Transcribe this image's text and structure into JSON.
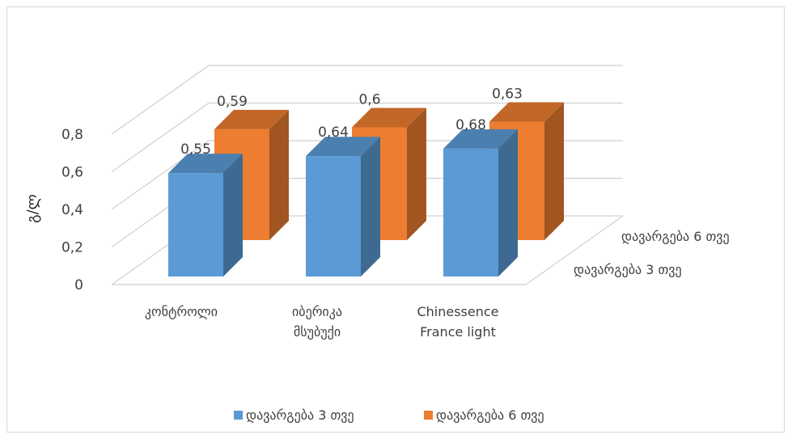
{
  "chart_data": {
    "type": "bar",
    "title": "",
    "xlabel": "",
    "ylabel": "გ/ლ",
    "ylim": [
      0,
      0.8
    ],
    "yticks": [
      "0",
      "0,2",
      "0,4",
      "0,6",
      "0,8"
    ],
    "yticks_values": [
      0,
      0.2,
      0.4,
      0.6,
      0.8
    ],
    "grid": true,
    "legend_position": "bottom",
    "categories": [
      [
        "კონტროლი"
      ],
      [
        "იბერიკა",
        "მსუბუქი"
      ],
      [
        "Chinessence",
        "France light"
      ]
    ],
    "series": [
      {
        "name": "დავარგება 3 თვე",
        "values": [
          0.55,
          0.64,
          0.68
        ],
        "labels": [
          "0,55",
          "0,64",
          "0,68"
        ],
        "color": "#5B9BD5"
      },
      {
        "name": "დავარგება 6 თვე",
        "values": [
          0.59,
          0.6,
          0.63
        ],
        "labels": [
          "0,59",
          "0,6",
          "0,63"
        ],
        "color": "#ED7D31"
      }
    ]
  }
}
